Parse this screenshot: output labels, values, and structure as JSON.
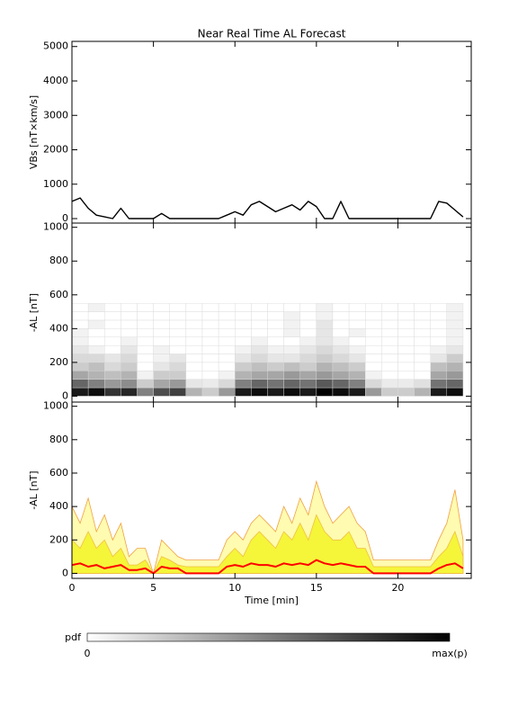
{
  "chart_data": [
    {
      "type": "line",
      "title": "Near Real Time AL Forecast",
      "ylabel": "VBs [nT×km/s]",
      "x": [
        0,
        0.5,
        1,
        1.5,
        2,
        2.5,
        3,
        3.5,
        4,
        4.5,
        5,
        5.5,
        6,
        6.5,
        7,
        7.5,
        8,
        8.5,
        9,
        9.5,
        10,
        10.5,
        11,
        11.5,
        12,
        12.5,
        13,
        13.5,
        14,
        14.5,
        15,
        15.5,
        16,
        16.5,
        17,
        17.5,
        18,
        18.5,
        19,
        19.5,
        20,
        20.5,
        21,
        21.5,
        22,
        22.5,
        23,
        23.5,
        24
      ],
      "series": [
        {
          "color": "#000000",
          "values": [
            500,
            600,
            300,
            100,
            50,
            0,
            300,
            0,
            0,
            0,
            0,
            150,
            0,
            0,
            0,
            0,
            0,
            0,
            0,
            100,
            200,
            100,
            400,
            500,
            350,
            200,
            300,
            400,
            250,
            500,
            350,
            0,
            0,
            500,
            0,
            0,
            0,
            0,
            0,
            0,
            0,
            0,
            0,
            0,
            0,
            500,
            450,
            250,
            50
          ]
        }
      ],
      "xlim": [
        0,
        24.5
      ],
      "xticks": [
        0,
        5,
        10,
        15,
        20
      ],
      "xticklabels": false,
      "ylim": [
        -130,
        5150
      ],
      "yticks": [
        0,
        1000,
        2000,
        3000,
        4000,
        5000
      ]
    },
    {
      "type": "heatmap",
      "ylabel": "-AL [nT]",
      "x_bins": [
        0,
        1,
        2,
        3,
        4,
        5,
        6,
        7,
        8,
        9,
        10,
        11,
        12,
        13,
        14,
        15,
        16,
        17,
        18,
        19,
        20,
        21,
        22,
        23,
        24
      ],
      "y_bins": [
        0,
        50,
        100,
        150,
        200,
        250,
        300,
        350,
        400,
        450,
        500,
        550
      ],
      "z": [
        [
          0.9,
          0.95,
          0.8,
          0.85,
          0.5,
          0.7,
          0.75,
          0.3,
          0.2,
          0.4,
          0.9,
          0.95,
          0.9,
          0.95,
          0.9,
          1,
          0.95,
          0.9,
          0.4,
          0.2,
          0.2,
          0.3,
          0.9,
          0.95
        ],
        [
          0.6,
          0.5,
          0.4,
          0.45,
          0.2,
          0.35,
          0.4,
          0.1,
          0.08,
          0.15,
          0.5,
          0.6,
          0.55,
          0.6,
          0.55,
          0.65,
          0.6,
          0.5,
          0.15,
          0.08,
          0.08,
          0.12,
          0.55,
          0.6
        ],
        [
          0.35,
          0.3,
          0.25,
          0.3,
          0.05,
          0.2,
          0.2,
          0,
          0,
          0.05,
          0.3,
          0.35,
          0.35,
          0.4,
          0.35,
          0.4,
          0.35,
          0.3,
          0.05,
          0,
          0,
          0,
          0.35,
          0.4
        ],
        [
          0.2,
          0.25,
          0.15,
          0.2,
          0,
          0.1,
          0.15,
          0,
          0,
          0,
          0.2,
          0.25,
          0.2,
          0.25,
          0.2,
          0.3,
          0.25,
          0.2,
          0,
          0,
          0,
          0,
          0.25,
          0.3
        ],
        [
          0.15,
          0.15,
          0.1,
          0.15,
          0,
          0.05,
          0.1,
          0,
          0,
          0,
          0.1,
          0.15,
          0.1,
          0.1,
          0.15,
          0.2,
          0.15,
          0.1,
          0,
          0,
          0,
          0,
          0.1,
          0.2
        ],
        [
          0.1,
          0.05,
          0,
          0.1,
          0,
          0.05,
          0,
          0,
          0,
          0,
          0.05,
          0.1,
          0.05,
          0.05,
          0.1,
          0.15,
          0.1,
          0.05,
          0,
          0,
          0,
          0,
          0.05,
          0.1
        ],
        [
          0.05,
          0,
          0,
          0.05,
          0,
          0,
          0,
          0,
          0,
          0,
          0,
          0.05,
          0,
          0,
          0.05,
          0.1,
          0.05,
          0,
          0,
          0,
          0,
          0,
          0,
          0.05
        ],
        [
          0.05,
          0,
          0,
          0,
          0,
          0,
          0,
          0,
          0,
          0,
          0,
          0,
          0,
          0.05,
          0,
          0.1,
          0,
          0.05,
          0,
          0,
          0,
          0,
          0,
          0.05
        ],
        [
          0,
          0.05,
          0,
          0,
          0,
          0,
          0,
          0,
          0,
          0,
          0,
          0,
          0,
          0.05,
          0,
          0.1,
          0,
          0,
          0,
          0,
          0,
          0,
          0,
          0.05
        ],
        [
          0,
          0,
          0,
          0,
          0,
          0,
          0,
          0,
          0,
          0,
          0,
          0,
          0,
          0.05,
          0,
          0.05,
          0,
          0,
          0,
          0,
          0,
          0,
          0,
          0.05
        ],
        [
          0,
          0.05,
          0,
          0,
          0,
          0,
          0,
          0,
          0,
          0,
          0,
          0,
          0,
          0,
          0,
          0.05,
          0,
          0,
          0,
          0,
          0,
          0,
          0,
          0.05
        ]
      ],
      "cmap": [
        "#ffffff",
        "#000000"
      ],
      "colorbar": {
        "label": "pdf",
        "min_label": "0",
        "max_label": "max(p)"
      },
      "xlim": [
        0,
        24.5
      ],
      "xticks": [
        0,
        5,
        10,
        15,
        20
      ],
      "xticklabels": false,
      "ylim": [
        -35,
        1025
      ],
      "yticks": [
        0,
        200,
        400,
        600,
        800,
        1000
      ]
    },
    {
      "type": "line",
      "ylabel": "-AL [nT]",
      "xlabel": "Time [min]",
      "x": [
        0,
        0.5,
        1,
        1.5,
        2,
        2.5,
        3,
        3.5,
        4,
        4.5,
        5,
        5.5,
        6,
        6.5,
        7,
        7.5,
        8,
        8.5,
        9,
        9.5,
        10,
        10.5,
        11,
        11.5,
        12,
        12.5,
        13,
        13.5,
        14,
        14.5,
        15,
        15.5,
        16,
        16.5,
        17,
        17.5,
        18,
        18.5,
        19,
        19.5,
        20,
        20.5,
        21,
        21.5,
        22,
        22.5,
        23,
        23.5,
        24
      ],
      "series": [
        {
          "kind": "area",
          "color": "#fffbb0",
          "edge": "#f0a040",
          "values": [
            400,
            300,
            450,
            250,
            350,
            200,
            300,
            100,
            150,
            150,
            0,
            200,
            150,
            100,
            80,
            80,
            80,
            80,
            80,
            200,
            250,
            200,
            300,
            350,
            300,
            250,
            400,
            300,
            450,
            350,
            550,
            400,
            300,
            350,
            400,
            300,
            250,
            80,
            80,
            80,
            80,
            80,
            80,
            80,
            80,
            200,
            300,
            500,
            200
          ]
        },
        {
          "kind": "area",
          "color": "#f5f53a",
          "edge": "#f0c040",
          "values": [
            200,
            150,
            250,
            150,
            200,
            100,
            150,
            50,
            50,
            80,
            0,
            100,
            80,
            50,
            40,
            40,
            40,
            40,
            40,
            100,
            150,
            100,
            200,
            250,
            200,
            150,
            250,
            200,
            300,
            200,
            350,
            250,
            200,
            200,
            250,
            150,
            150,
            40,
            40,
            40,
            40,
            40,
            40,
            40,
            40,
            100,
            150,
            250,
            100
          ]
        },
        {
          "kind": "line",
          "color": "#ff0000",
          "values": [
            50,
            60,
            40,
            50,
            30,
            40,
            50,
            20,
            20,
            30,
            0,
            40,
            30,
            30,
            0,
            0,
            0,
            0,
            0,
            40,
            50,
            40,
            60,
            50,
            50,
            40,
            60,
            50,
            60,
            50,
            80,
            60,
            50,
            60,
            50,
            40,
            40,
            0,
            0,
            0,
            0,
            0,
            0,
            0,
            0,
            30,
            50,
            60,
            30
          ]
        }
      ],
      "xlim": [
        0,
        24.5
      ],
      "xticks": [
        0,
        5,
        10,
        15,
        20
      ],
      "xticklabels": true,
      "ylim": [
        -30,
        1025
      ],
      "yticks": [
        0,
        200,
        400,
        600,
        800,
        1000
      ]
    }
  ]
}
